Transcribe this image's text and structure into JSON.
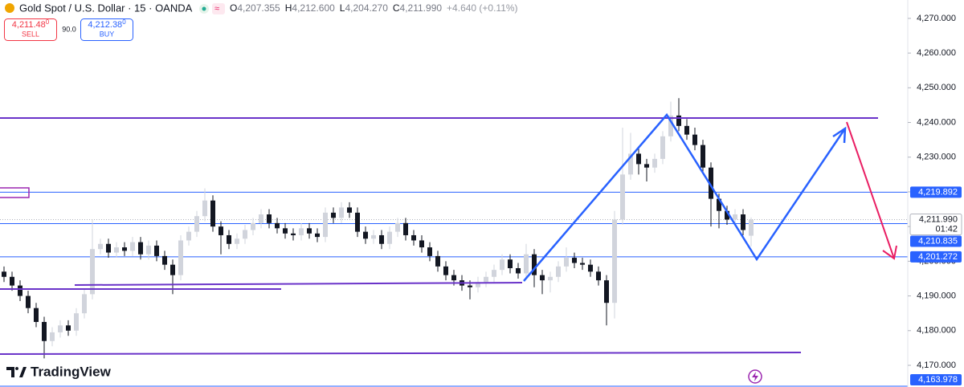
{
  "header": {
    "symbol": "Gold Spot / U.S. Dollar · 15 · OANDA",
    "o_label": "O",
    "o": "4,207.355",
    "h_label": "H",
    "h": "4,212.600",
    "l_label": "L",
    "l": "4,204.270",
    "c_label": "C",
    "c": "4,211.990",
    "change": "+4.640 (+0.11%)"
  },
  "trade": {
    "sell_price": "4,211.48",
    "sell_sup": "0",
    "sell_label": "SELL",
    "spread": "90.0",
    "buy_price": "4,212.38",
    "buy_sup": "0",
    "buy_label": "BUY"
  },
  "brand": "TradingView",
  "chart_data": {
    "type": "candlestick",
    "up_color": "#d1d4dc",
    "down_color": "#131722",
    "ylim": [
      4163.75,
      4275.3
    ],
    "yticks": [
      {
        "value": 4170,
        "label": "4,170.000"
      },
      {
        "value": 4180,
        "label": "4,180.000"
      },
      {
        "value": 4190,
        "label": "4,190.000"
      },
      {
        "value": 4200,
        "label": "4,200.000"
      },
      {
        "value": 4210,
        "label": "4,210.000"
      },
      {
        "value": 4220,
        "label": "4,220.000"
      },
      {
        "value": 4230,
        "label": "4,230.000"
      },
      {
        "value": 4240,
        "label": "4,240.000"
      },
      {
        "value": 4250,
        "label": "4,250.000"
      },
      {
        "value": 4260,
        "label": "4,260.000"
      },
      {
        "value": 4270,
        "label": "4,270.000"
      }
    ],
    "levels": [
      {
        "value": 4219.892,
        "label": "4,219.892",
        "color": "#2962ff"
      },
      {
        "value": 4210.835,
        "label": "4,210.835",
        "color": "#2962ff"
      },
      {
        "value": 4201.272,
        "label": "4,201.272",
        "color": "#2962ff"
      },
      {
        "value": 4163.978,
        "label": "4,163.978",
        "color": "#2962ff"
      }
    ],
    "last_price": {
      "value": 4211.99,
      "label": "4,211.990",
      "countdown": "01:42",
      "color": "#b2b5be"
    },
    "open": [
      4197.0,
      4195.5,
      4193.0,
      4190.0,
      4186.5,
      4182.5,
      4177.0,
      4179.5,
      4181.5,
      4180.0,
      4185.0,
      4190.5,
      4203.5,
      4205.0,
      4202.5,
      4204.0,
      4203.0,
      4205.5,
      4202.0,
      4204.5,
      4201.5,
      4199.0,
      4196.0,
      4206.0,
      4208.5,
      4213.0,
      4217.5,
      4210.0,
      4207.5,
      4205.0,
      4206.5,
      4209.0,
      4211.0,
      4213.5,
      4211.0,
      4209.5,
      4208.0,
      4207.5,
      4209.5,
      4208.0,
      4207.0,
      4214.0,
      4212.5,
      4215.5,
      4214.0,
      4208.5,
      4206.5,
      4207.5,
      4205.0,
      4208.5,
      4211.0,
      4207.5,
      4206.0,
      4204.0,
      4201.5,
      4198.5,
      4196.0,
      4194.5,
      4193.0,
      4192.5,
      4194.0,
      4195.5,
      4197.5,
      4200.5,
      4198.0,
      4196.5,
      4202.0,
      4196.0,
      4194.5,
      4195.5,
      4198.5,
      4201.0,
      4199.5,
      4199.0,
      4197.0,
      4194.5,
      4188.0,
      4212.0,
      4225.0,
      4231.0,
      4228.0,
      4227.0,
      4229.5,
      4236.0,
      4242.0,
      4239.0,
      4236.5,
      4233.5,
      4227.0,
      4218.0,
      4214.5,
      4212.0,
      4213.5,
      4207.355
    ],
    "high": [
      4198.5,
      4197.0,
      4194.5,
      4191.5,
      4188.0,
      4184.0,
      4181.0,
      4183.0,
      4183.0,
      4186.5,
      4192.0,
      4212.0,
      4206.5,
      4206.5,
      4205.5,
      4205.5,
      4207.0,
      4207.0,
      4206.0,
      4206.0,
      4203.0,
      4200.5,
      4207.5,
      4210.0,
      4214.5,
      4221.0,
      4219.0,
      4211.5,
      4209.0,
      4208.0,
      4210.5,
      4212.5,
      4215.0,
      4215.0,
      4212.5,
      4211.0,
      4209.5,
      4211.0,
      4211.0,
      4209.5,
      4215.5,
      4215.5,
      4217.0,
      4217.0,
      4215.5,
      4210.0,
      4209.0,
      4209.0,
      4210.0,
      4212.5,
      4212.5,
      4209.0,
      4207.5,
      4205.5,
      4203.0,
      4200.0,
      4197.5,
      4196.0,
      4194.5,
      4195.5,
      4197.0,
      4199.0,
      4202.0,
      4202.0,
      4199.5,
      4205.0,
      4203.5,
      4197.5,
      4197.0,
      4200.0,
      4204.0,
      4202.5,
      4201.0,
      4200.5,
      4198.5,
      4196.0,
      4214.5,
      4238.5,
      4237.0,
      4232.5,
      4229.5,
      4231.0,
      4237.5,
      4246.0,
      4247.0,
      4241.0,
      4238.5,
      4235.0,
      4228.5,
      4219.5,
      4216.0,
      4215.0,
      4215.0,
      4212.6
    ],
    "low": [
      4194.0,
      4191.5,
      4188.5,
      4185.0,
      4181.0,
      4172.0,
      4175.5,
      4178.0,
      4178.5,
      4178.5,
      4183.5,
      4189.0,
      4202.0,
      4201.0,
      4201.0,
      4201.5,
      4201.5,
      4200.5,
      4200.5,
      4200.0,
      4197.5,
      4190.5,
      4194.5,
      4204.5,
      4207.0,
      4211.5,
      4208.5,
      4202.0,
      4203.5,
      4203.5,
      4205.0,
      4207.5,
      4209.5,
      4209.5,
      4208.0,
      4206.5,
      4206.0,
      4206.0,
      4206.5,
      4205.5,
      4205.5,
      4211.0,
      4211.0,
      4212.5,
      4207.0,
      4205.0,
      4205.0,
      4203.5,
      4203.5,
      4207.0,
      4206.0,
      4204.5,
      4202.5,
      4200.0,
      4197.0,
      4194.5,
      4193.0,
      4191.5,
      4189.0,
      4191.0,
      4192.5,
      4194.0,
      4196.0,
      4196.5,
      4195.0,
      4195.0,
      4192.5,
      4190.5,
      4191.0,
      4194.0,
      4197.0,
      4198.0,
      4197.5,
      4195.5,
      4193.0,
      4181.5,
      4183.5,
      4210.5,
      4223.5,
      4225.0,
      4223.0,
      4225.5,
      4228.0,
      4234.5,
      4237.5,
      4235.0,
      4232.0,
      4225.5,
      4210.0,
      4209.5,
      4210.5,
      4210.5,
      4207.5,
      4204.27
    ],
    "close": [
      4195.5,
      4193.0,
      4190.0,
      4186.5,
      4182.5,
      4177.0,
      4179.5,
      4181.5,
      4180.0,
      4185.0,
      4190.5,
      4203.5,
      4205.0,
      4202.5,
      4204.0,
      4203.0,
      4205.5,
      4202.0,
      4204.5,
      4201.5,
      4199.0,
      4196.0,
      4206.0,
      4208.5,
      4213.0,
      4217.5,
      4210.0,
      4207.5,
      4205.0,
      4206.5,
      4209.0,
      4211.0,
      4213.5,
      4211.0,
      4209.5,
      4208.0,
      4207.5,
      4209.5,
      4208.0,
      4207.0,
      4214.0,
      4212.5,
      4215.5,
      4214.0,
      4208.5,
      4206.5,
      4207.5,
      4205.0,
      4208.5,
      4211.0,
      4207.5,
      4206.0,
      4204.0,
      4201.5,
      4198.5,
      4196.0,
      4194.5,
      4193.0,
      4192.5,
      4194.0,
      4195.5,
      4197.5,
      4200.5,
      4198.0,
      4196.5,
      4202.0,
      4196.0,
      4194.5,
      4195.5,
      4198.5,
      4201.0,
      4199.5,
      4199.0,
      4197.0,
      4194.5,
      4188.0,
      4212.0,
      4225.0,
      4231.0,
      4228.0,
      4227.0,
      4229.5,
      4236.0,
      4242.0,
      4239.0,
      4236.5,
      4233.5,
      4227.0,
      4218.0,
      4214.5,
      4212.0,
      4213.5,
      4209.0,
      4211.99
    ]
  }
}
